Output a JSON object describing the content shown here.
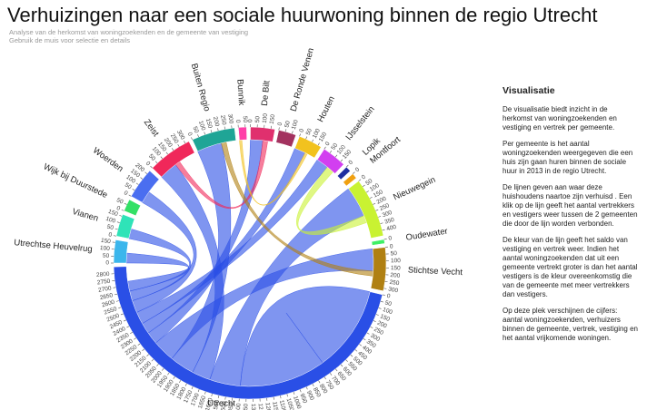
{
  "chart_data": {
    "type": "chord",
    "title": "Verhuizingen naar een sociale huurwoning binnen de regio Utrecht",
    "subtitle": "Analyse van de herkomst van woningzoekenden en de gemeente van vestiging",
    "hint": "Gebruik de muis voor selectie en details",
    "groups": [
      {
        "name": "Utrechtse Heuvelrug",
        "color": "#3bb6ec",
        "value": 170,
        "ticks": [
          0,
          50,
          100,
          150
        ]
      },
      {
        "name": "Vianen",
        "color": "#2fe3b8",
        "value": 165,
        "ticks": [
          0,
          50,
          100,
          150
        ]
      },
      {
        "name": "Wijk bij Duurstede",
        "color": "#33e066",
        "value": 90,
        "ticks": [
          0,
          50
        ]
      },
      {
        "name": "Woerden",
        "color": "#4a6ef0",
        "value": 230,
        "ticks": [
          0,
          50,
          100,
          150,
          200
        ]
      },
      {
        "name": "Zeist",
        "color": "#f0285a",
        "value": 330,
        "ticks": [
          0,
          50,
          100,
          150,
          200,
          250,
          300
        ]
      },
      {
        "name": "Buiten Regio",
        "color": "#1fa596",
        "value": 320,
        "ticks": [
          0,
          50,
          100,
          150,
          200,
          250,
          300
        ]
      },
      {
        "name": "Bunnik",
        "color": "#ff3fa8",
        "value": 60,
        "ticks": [
          0,
          50
        ]
      },
      {
        "name": "De Bilt",
        "color": "#e0306e",
        "value": 180,
        "ticks": [
          0,
          50,
          100,
          150
        ]
      },
      {
        "name": "De Ronde Venen",
        "color": "#a3325f",
        "value": 130,
        "ticks": [
          0,
          50,
          100
        ]
      },
      {
        "name": "Houten",
        "color": "#f2c21e",
        "value": 175,
        "ticks": [
          0,
          50,
          100,
          150
        ]
      },
      {
        "name": "IJsselstein",
        "color": "#d23ff0",
        "value": 180,
        "ticks": [
          0,
          50,
          100,
          150
        ]
      },
      {
        "name": "Lopik",
        "color": "#1f2ea0",
        "value": 40,
        "ticks": [
          0
        ]
      },
      {
        "name": "Montfoort",
        "color": "#f0a010",
        "value": 40,
        "ticks": [
          0
        ]
      },
      {
        "name": "Nieuwegein",
        "color": "#c9f232",
        "value": 440,
        "ticks": [
          0,
          50,
          100,
          150,
          200,
          250,
          300,
          350,
          400
        ]
      },
      {
        "name": "Oudewater",
        "color": "#3ff066",
        "value": 30,
        "ticks": [
          0
        ]
      },
      {
        "name": "Stichtse Vecht",
        "color": "#b08012",
        "value": 320,
        "ticks": [
          0,
          50,
          100,
          150,
          200,
          250,
          300
        ]
      },
      {
        "name": "Utrecht",
        "color": "#2a4fe6",
        "value": 2850,
        "ticks": [
          0,
          50,
          100,
          150,
          200,
          250,
          300,
          350,
          400,
          450,
          500,
          550,
          600,
          650,
          700,
          750,
          800,
          850,
          900,
          950,
          1000,
          1050,
          1100,
          1150,
          1200,
          1250,
          1300,
          1350,
          1400,
          1450,
          1500,
          1550,
          1600,
          1650,
          1700,
          1750,
          1800,
          1850,
          1900,
          1950,
          2000,
          2050,
          2100,
          2150,
          2200,
          2250,
          2300,
          2350,
          2400,
          2450,
          2500,
          2550,
          2600,
          2650,
          2700,
          2750,
          2800
        ]
      }
    ],
    "links": [
      {
        "source": "Utrecht",
        "target": "Utrecht",
        "value": 700
      },
      {
        "source": "Utrecht",
        "target": "Nieuwegein",
        "value": 250
      },
      {
        "source": "Utrecht",
        "target": "Zeist",
        "value": 150
      },
      {
        "source": "Utrecht",
        "target": "Buiten Regio",
        "value": 200
      },
      {
        "source": "Utrecht",
        "target": "Stichtse Vecht",
        "value": 180
      },
      {
        "source": "Utrecht",
        "target": "De Bilt",
        "value": 100
      },
      {
        "source": "Utrecht",
        "target": "Houten",
        "value": 90
      },
      {
        "source": "Utrecht",
        "target": "IJsselstein",
        "value": 100
      },
      {
        "source": "Utrecht",
        "target": "Woerden",
        "value": 100
      },
      {
        "source": "Utrecht",
        "target": "Vianen",
        "value": 80
      },
      {
        "source": "Utrecht",
        "target": "Utrechtse Heuvelrug",
        "value": 80
      },
      {
        "source": "Nieuwegein",
        "target": "IJsselstein",
        "value": 60
      },
      {
        "source": "Zeist",
        "target": "De Bilt",
        "value": 40
      },
      {
        "source": "Stichtse Vecht",
        "target": "Buiten Regio",
        "value": 40
      },
      {
        "source": "Houten",
        "target": "Bunnik",
        "value": 20
      }
    ]
  },
  "panel": {
    "title": "Visualisatie",
    "paragraphs": [
      "De visualisatie biedt inzicht in de herkomst van woningzoekenden en vestiging en vertrek per gemeente.",
      "Per gemeente is het aantal woningzoekenden weergegeven die een huis zijn gaan huren binnen de sociale huur in 2013 in de regio Utrecht.",
      "De lijnen geven aan waar deze huishoudens naartoe zijn verhuisd . Een klik op de lijn geeft het aantal vertrekkers en vestigers weer tussen de 2 gemeenten die door de lijn worden verbonden.",
      "De kleur van de lijn geeft het saldo van vestiging en vertrek weer. Indien het aantal woningzoekenden dat uit een gemeente vertrekt groter is dan het aantal vestigers is de kleur overeenkomstig die van de gemeente met meer vertrekkers dan vestigers.",
      "Op deze plek verschijnen de cijfers: aantal woningzoekenden, verhuizers binnen de gemeente, vertrek, vestiging en het aantal vrijkomende woningen."
    ]
  }
}
